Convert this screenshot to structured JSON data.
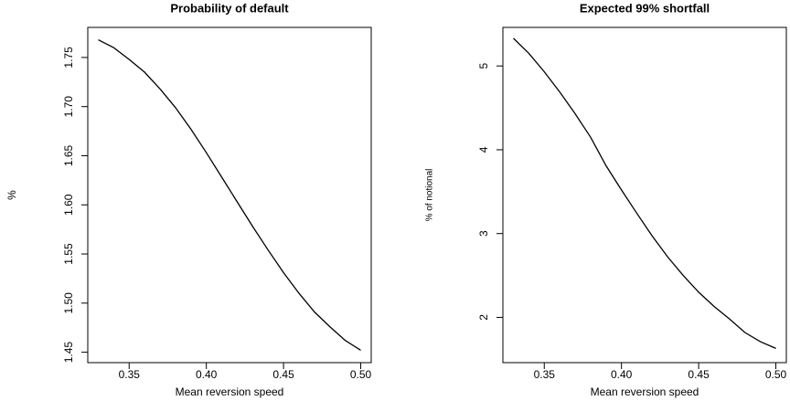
{
  "chart_data": [
    {
      "type": "line",
      "title": "Probability of default",
      "xlabel": "Mean reversion speed",
      "ylabel": "%",
      "color": "#000000",
      "x": [
        0.33,
        0.34,
        0.35,
        0.36,
        0.37,
        0.38,
        0.39,
        0.4,
        0.41,
        0.42,
        0.43,
        0.44,
        0.45,
        0.46,
        0.47,
        0.48,
        0.49,
        0.5
      ],
      "values": [
        1.768,
        1.76,
        1.748,
        1.735,
        1.718,
        1.699,
        1.677,
        1.653,
        1.628,
        1.603,
        1.578,
        1.554,
        1.531,
        1.51,
        1.491,
        1.476,
        1.462,
        1.452
      ],
      "xlim": [
        0.3232,
        0.5068
      ],
      "ylim": [
        1.4394,
        1.7806
      ],
      "xticks": [
        0.35,
        {
          "value": 0.4,
          "label": "0.40"
        },
        0.45,
        {
          "value": 0.5,
          "label": "0.50"
        }
      ],
      "yticks": [
        1.45,
        {
          "value": 1.5,
          "label": "1.50"
        },
        1.55,
        {
          "value": 1.6,
          "label": "1.60"
        },
        1.65,
        {
          "value": 1.7,
          "label": "1.70"
        },
        1.75
      ]
    },
    {
      "type": "line",
      "title": "Expected 99% shortfall",
      "xlabel": "Mean reversion speed",
      "ylabel": "% of notional",
      "color": "#000000",
      "x": [
        0.33,
        0.34,
        0.35,
        0.36,
        0.37,
        0.38,
        0.39,
        0.4,
        0.41,
        0.42,
        0.43,
        0.44,
        0.45,
        0.46,
        0.47,
        0.48,
        0.49,
        0.5
      ],
      "values": [
        5.33,
        5.15,
        4.93,
        4.69,
        4.43,
        4.15,
        3.81,
        3.52,
        3.24,
        2.97,
        2.72,
        2.5,
        2.3,
        2.13,
        1.98,
        1.82,
        1.71,
        1.63
      ],
      "xlim": [
        0.3232,
        0.5068
      ],
      "ylim": [
        1.46,
        5.46
      ],
      "xticks": [
        0.35,
        {
          "value": 0.4,
          "label": "0.40"
        },
        0.45,
        {
          "value": 0.5,
          "label": "0.50"
        }
      ],
      "yticks": [
        2,
        3,
        4,
        5
      ]
    }
  ]
}
